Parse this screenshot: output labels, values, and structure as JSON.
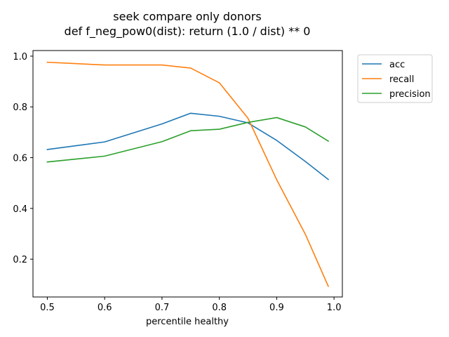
{
  "chart_data": {
    "type": "line",
    "title": "seek compare only donors",
    "subtitle": "def f_neg_pow0(dist): return (1.0 / dist) ** 0",
    "xlabel": "percentile healthy",
    "ylabel": "",
    "xlim": [
      0.475,
      1.0145
    ],
    "ylim": [
      0.051,
      1.022
    ],
    "xticks": [
      "0.5",
      "0.6",
      "0.7",
      "0.8",
      "0.9",
      "1.0"
    ],
    "yticks": [
      "0.2",
      "0.4",
      "0.6",
      "0.8",
      "1.0"
    ],
    "grid": false,
    "legend_position": "outside-top-right",
    "x": [
      0.5,
      0.6,
      0.7,
      0.75,
      0.8,
      0.85,
      0.9,
      0.95,
      0.99
    ],
    "series": [
      {
        "name": "acc",
        "color": "#1f77b4",
        "values": [
          0.632,
          0.662,
          0.733,
          0.775,
          0.763,
          0.737,
          0.668,
          0.585,
          0.514
        ]
      },
      {
        "name": "recall",
        "color": "#ff7f0e",
        "values": [
          0.976,
          0.965,
          0.965,
          0.953,
          0.895,
          0.755,
          0.513,
          0.298,
          0.093
        ]
      },
      {
        "name": "precision",
        "color": "#2ca02c",
        "values": [
          0.583,
          0.606,
          0.663,
          0.706,
          0.712,
          0.739,
          0.758,
          0.721,
          0.665
        ]
      }
    ]
  }
}
